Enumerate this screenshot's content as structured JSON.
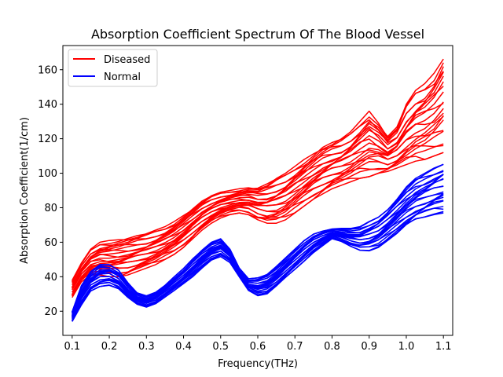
{
  "chart_data": {
    "type": "line",
    "title": "Absorption Coefficient Spectrum Of The Blood Vessel",
    "xlabel": "Frequency(THz)",
    "ylabel": "Absorption Coefficient(1/cm)",
    "xlim": [
      0.075,
      1.125
    ],
    "ylim": [
      6,
      174
    ],
    "x_ticks": [
      0.1,
      0.2,
      0.3,
      0.4,
      0.5,
      0.6,
      0.7,
      0.8,
      0.9,
      1.0,
      1.1
    ],
    "x_tick_labels": [
      "0.1",
      "0.2",
      "0.3",
      "0.4",
      "0.5",
      "0.6",
      "0.7",
      "0.8",
      "0.9",
      "1.0",
      "1.1"
    ],
    "y_ticks": [
      20,
      40,
      60,
      80,
      100,
      120,
      140,
      160
    ],
    "y_tick_labels": [
      "20",
      "40",
      "60",
      "80",
      "100",
      "120",
      "140",
      "160"
    ],
    "grid": false,
    "legend_position": "top-left",
    "x": [
      0.1,
      0.125,
      0.15,
      0.175,
      0.2,
      0.225,
      0.25,
      0.275,
      0.3,
      0.325,
      0.35,
      0.375,
      0.4,
      0.425,
      0.45,
      0.475,
      0.5,
      0.525,
      0.55,
      0.575,
      0.6,
      0.625,
      0.65,
      0.675,
      0.7,
      0.725,
      0.75,
      0.775,
      0.8,
      0.825,
      0.85,
      0.875,
      0.9,
      0.925,
      0.95,
      0.975,
      1.0,
      1.025,
      1.05,
      1.075,
      1.1
    ],
    "series": [
      {
        "name": "Diseased",
        "color": "#ff0000",
        "low": [
          28,
          37,
          41,
          41,
          40,
          40,
          41,
          43,
          45,
          47,
          50,
          53,
          57,
          62,
          67,
          71,
          74,
          76,
          77,
          76,
          73,
          71,
          71,
          73,
          77,
          81,
          85,
          88,
          91,
          93,
          95,
          97,
          98,
          100,
          101,
          103,
          105,
          107,
          108,
          110,
          112
        ],
        "high": [
          38,
          48,
          56,
          60,
          61,
          62,
          63,
          64,
          65,
          67,
          69,
          72,
          76,
          80,
          84,
          87,
          89,
          90,
          91,
          92,
          92,
          94,
          97,
          100,
          104,
          108,
          112,
          116,
          118,
          120,
          124,
          130,
          136,
          130,
          122,
          127,
          140,
          148,
          152,
          158,
          168
        ]
      },
      {
        "name": "Normal",
        "color": "#0000ff",
        "low": [
          14,
          23,
          31,
          34,
          35,
          33,
          28,
          24,
          22,
          24,
          28,
          32,
          36,
          40,
          45,
          49,
          51,
          48,
          40,
          32,
          29,
          30,
          34,
          39,
          44,
          49,
          54,
          58,
          62,
          60,
          57,
          55,
          55,
          57,
          61,
          65,
          69,
          72,
          74,
          76,
          77
        ],
        "high": [
          20,
          35,
          43,
          47,
          47,
          44,
          37,
          31,
          29,
          31,
          35,
          40,
          45,
          51,
          56,
          60,
          62,
          56,
          45,
          39,
          40,
          42,
          46,
          51,
          56,
          61,
          65,
          67,
          68,
          68,
          68,
          69,
          72,
          75,
          80,
          86,
          92,
          97,
          100,
          103,
          106
        ]
      }
    ]
  }
}
